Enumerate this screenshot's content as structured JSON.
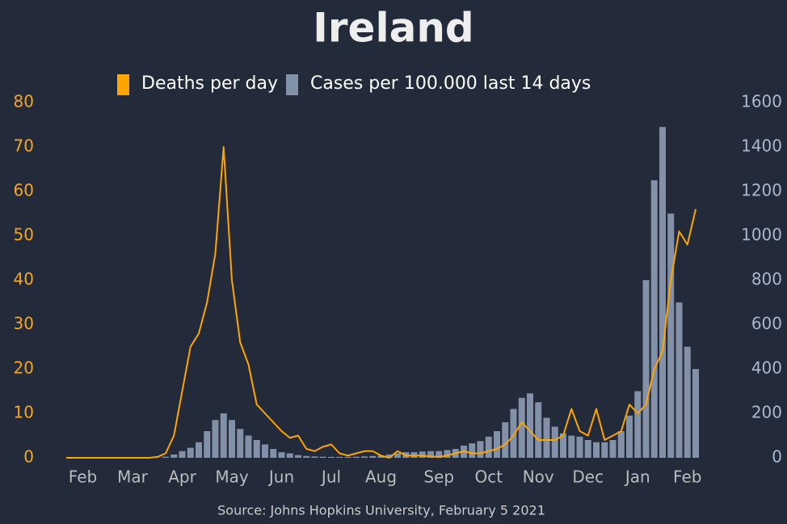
{
  "chart_data": {
    "type": "bar-line",
    "title": "Ireland",
    "source": "Source: Johns Hopkins University, February 5 2021",
    "categories": [
      null,
      null,
      "Feb",
      null,
      null,
      null,
      null,
      null,
      "Mar",
      null,
      null,
      null,
      null,
      null,
      "Apr",
      null,
      null,
      null,
      null,
      null,
      "May",
      null,
      null,
      null,
      null,
      null,
      "Jun",
      null,
      null,
      null,
      null,
      null,
      "Jul",
      null,
      null,
      null,
      null,
      null,
      "Aug",
      null,
      null,
      null,
      null,
      null,
      null,
      "Sep",
      null,
      null,
      null,
      null,
      null,
      "Oct",
      null,
      null,
      null,
      null,
      null,
      "Nov",
      null,
      null,
      null,
      null,
      null,
      "Dec",
      null,
      null,
      null,
      null,
      null,
      "Jan",
      null,
      null,
      null,
      null,
      null,
      "Feb",
      null
    ],
    "series": [
      {
        "name": "Deaths per day",
        "kind": "line",
        "color": "#ffa500",
        "axis": "y",
        "values": [
          0,
          0,
          0,
          0,
          0,
          0,
          0,
          0,
          0,
          0,
          0,
          0.2,
          1,
          5,
          15,
          25,
          28,
          35,
          46,
          70,
          40,
          26,
          21,
          12,
          10,
          8,
          6,
          4.5,
          5,
          2,
          1.5,
          2.5,
          3,
          1,
          0.5,
          1,
          1.5,
          1.5,
          0.5,
          0,
          1.5,
          0.5,
          0.5,
          0.5,
          0.3,
          0.2,
          0.5,
          1,
          1.5,
          1,
          1,
          1.5,
          2,
          3,
          5,
          8,
          6,
          4,
          4,
          4,
          5,
          11,
          6,
          5,
          11,
          4,
          5,
          6,
          12,
          10,
          12,
          20,
          24,
          40,
          51,
          48,
          56
        ]
      },
      {
        "name": "Cases per 100.000 last 14 days",
        "kind": "bar",
        "color": "#8391a8",
        "axis": "y2",
        "values": [
          0,
          0,
          0,
          0,
          0,
          0,
          0,
          0,
          0,
          0,
          0,
          1,
          5,
          15,
          30,
          45,
          70,
          120,
          170,
          200,
          170,
          130,
          100,
          80,
          60,
          40,
          25,
          20,
          12,
          8,
          6,
          5,
          4,
          4,
          4,
          5,
          6,
          8,
          10,
          15,
          20,
          25,
          25,
          28,
          30,
          30,
          35,
          40,
          55,
          65,
          75,
          95,
          120,
          160,
          220,
          270,
          290,
          250,
          180,
          140,
          110,
          100,
          95,
          80,
          70,
          70,
          80,
          120,
          190,
          300,
          800,
          1250,
          1490,
          1100,
          700,
          500,
          400
        ]
      }
    ],
    "ylim": [
      0,
      80
    ],
    "yticks": [
      0,
      10,
      20,
      30,
      40,
      50,
      60,
      70,
      80
    ],
    "y_tick_color": "#f5a623",
    "y2lim": [
      0,
      1600
    ],
    "y2ticks": [
      0,
      200,
      400,
      600,
      800,
      1000,
      1200,
      1400,
      1600
    ],
    "y2_tick_color": "#aab8cf",
    "grid": false,
    "legend": "top"
  }
}
